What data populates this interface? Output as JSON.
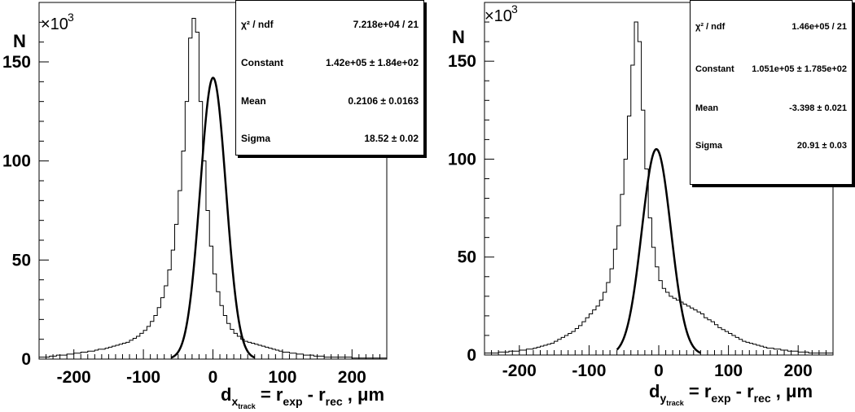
{
  "chart_data": [
    {
      "type": "histogram",
      "ylabel": "N",
      "y_multiplier": "×10",
      "y_multiplier_exp": "3",
      "xlabel": {
        "d": "d",
        "sub": "x",
        "subsub": "track",
        "rest": " = r",
        "exp_sub": "exp",
        "mid": " - r",
        "rec_sub": "rec",
        "unit": " , μm"
      },
      "xlim": [
        -250,
        250
      ],
      "ylim": [
        0,
        180
      ],
      "x_ticks": [
        -200,
        -100,
        0,
        100,
        200
      ],
      "x_tick_labels": [
        "-200",
        "-100",
        "0",
        "100",
        "200"
      ],
      "y_ticks": [
        0,
        50,
        100,
        150
      ],
      "y_tick_labels": [
        "0",
        "50",
        "100",
        "150"
      ],
      "bin_width": 5,
      "x_start": -250,
      "values": [
        1,
        1,
        1,
        1.5,
        1.5,
        2,
        2,
        2,
        2.5,
        2.5,
        3,
        3,
        3.5,
        3.5,
        4,
        4,
        4.5,
        5,
        5,
        5.5,
        6,
        6.5,
        7,
        7.5,
        8,
        8.5,
        9.5,
        10.5,
        11.5,
        13,
        14.5,
        16.5,
        19,
        22,
        26,
        31,
        37,
        45,
        55,
        68,
        85,
        105,
        130,
        162,
        172,
        165,
        130,
        100,
        75,
        57,
        43,
        34,
        27,
        22,
        18,
        15,
        13,
        11.5,
        10,
        9,
        8.5,
        8,
        7.5,
        7,
        6.5,
        6,
        5.5,
        5,
        4.5,
        4,
        3.5,
        3.5,
        3,
        3,
        2.5,
        2.5,
        2,
        2,
        2,
        1.5,
        1.5,
        1.5,
        1,
        1,
        1,
        1,
        1,
        1,
        1,
        1,
        0.5,
        0.5,
        0.5,
        0.5,
        0.5,
        0.5,
        0.5,
        0.5,
        0.5,
        0.5
      ],
      "fit": {
        "constant": 142,
        "mean": 0.2106,
        "sigma": 18.52,
        "range": [
          -60,
          60
        ]
      },
      "stats": [
        {
          "key": "χ² / ndf",
          "value": "7.218e+04 / 21"
        },
        {
          "key": "Constant",
          "value": "1.42e+05 ± 1.84e+02"
        },
        {
          "key": "Mean",
          "value": "0.2106 ± 0.0163"
        },
        {
          "key": "Sigma",
          "value": "18.52 ± 0.02"
        }
      ]
    },
    {
      "type": "histogram",
      "ylabel": "N",
      "y_multiplier": "×10",
      "y_multiplier_exp": "3",
      "xlabel": {
        "d": "d",
        "sub": "y",
        "subsub": "track",
        "rest": " = r",
        "exp_sub": "exp",
        "mid": " - r",
        "rec_sub": "rec",
        "unit": " , μm"
      },
      "xlim": [
        -250,
        250
      ],
      "ylim": [
        0,
        180
      ],
      "x_ticks": [
        -200,
        -100,
        0,
        100,
        200
      ],
      "x_tick_labels": [
        "-200",
        "-100",
        "0",
        "100",
        "200"
      ],
      "y_ticks": [
        0,
        50,
        100,
        150
      ],
      "y_tick_labels": [
        "0",
        "50",
        "100",
        "150"
      ],
      "bin_width": 5,
      "x_start": -250,
      "values": [
        1,
        1,
        1,
        1,
        1.5,
        1.5,
        1.5,
        2,
        2,
        2,
        2.5,
        2.5,
        3,
        3,
        3.5,
        4,
        4.5,
        5,
        5.5,
        6,
        7,
        8,
        9,
        10,
        11,
        12,
        13.5,
        15,
        17,
        19,
        21,
        23,
        25,
        28,
        32,
        37,
        44,
        54,
        66,
        82,
        100,
        122,
        148,
        170,
        160,
        125,
        95,
        70,
        55,
        45,
        38,
        34,
        32,
        30,
        29,
        28,
        27,
        26,
        25,
        24,
        23,
        22,
        21,
        19,
        18,
        17,
        15.5,
        14,
        13,
        12,
        11,
        10,
        9,
        8,
        7,
        6.5,
        6,
        5.5,
        5,
        4.5,
        4,
        3.5,
        3.5,
        3,
        3,
        2.5,
        2.5,
        2,
        2,
        2,
        1.5,
        1.5,
        1.5,
        1,
        1,
        1,
        1,
        1,
        1,
        1
      ],
      "fit": {
        "constant": 105.1,
        "mean": -3.398,
        "sigma": 20.91,
        "range": [
          -60,
          60
        ]
      },
      "stats": [
        {
          "key": "χ² / ndf",
          "value": "1.46e+05 / 21"
        },
        {
          "key": "Constant",
          "value": "1.051e+05 ± 1.785e+02"
        },
        {
          "key": "Mean",
          "value": "-3.398 ± 0.021"
        },
        {
          "key": "Sigma",
          "value": "20.91 ± 0.03"
        }
      ]
    }
  ]
}
